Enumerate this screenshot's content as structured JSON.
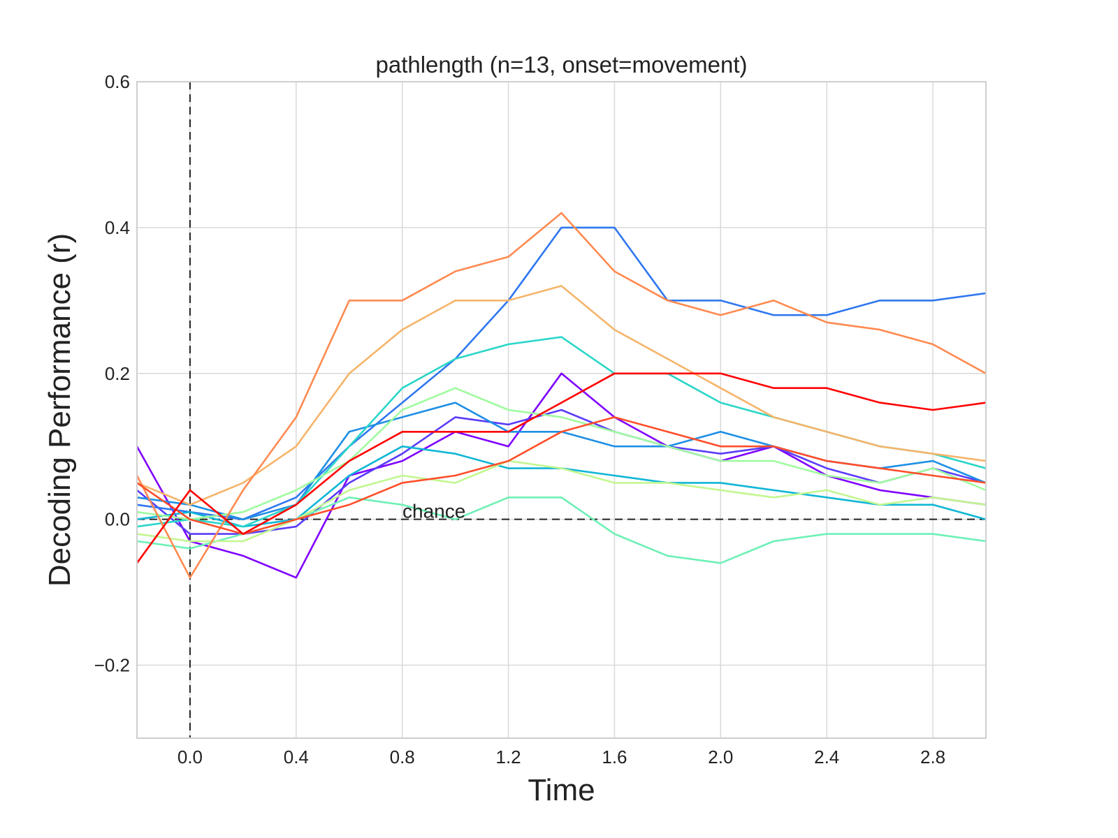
{
  "chart_data": {
    "type": "line",
    "title": "pathlength (n=13, onset=movement)",
    "xlabel": "Time",
    "ylabel": "Decoding Performance (r)",
    "xlim": [
      -0.2,
      3.0
    ],
    "ylim": [
      -0.3,
      0.6
    ],
    "xticks": [
      0.0,
      0.4,
      0.8,
      1.2,
      1.6,
      2.0,
      2.4,
      2.8
    ],
    "xtick_labels": [
      "0.0",
      "0.4",
      "0.8",
      "1.2",
      "1.6",
      "2.0",
      "2.4",
      "2.8"
    ],
    "yticks": [
      -0.2,
      0.0,
      0.2,
      0.4,
      0.6
    ],
    "ytick_labels": [
      "−0.2",
      "0.0",
      "0.2",
      "0.4",
      "0.6"
    ],
    "grid": true,
    "onset_line_x": 0.0,
    "chance_level": 0.0,
    "annotation": "chance",
    "series_colors": [
      "#7f00ff",
      "#5a3cfa",
      "#2f77ef",
      "#1e8fe5",
      "#10b6d6",
      "#2ad6c8",
      "#6ef0b6",
      "#9ffb9f",
      "#c2f790",
      "#f6b46a",
      "#ff8a50",
      "#ff4e2a",
      "#ff0000"
    ],
    "series": [
      {
        "x": [
          -0.2,
          0.0,
          0.2,
          0.4,
          0.6,
          0.8,
          1.0,
          1.2,
          1.4,
          1.6,
          1.8,
          2.0,
          2.2,
          2.4,
          2.6,
          2.8,
          3.0
        ],
        "values": [
          0.1,
          -0.03,
          -0.05,
          -0.08,
          0.06,
          0.08,
          0.12,
          0.1,
          0.2,
          0.14,
          0.1,
          0.08,
          0.1,
          0.06,
          0.04,
          0.03,
          0.02
        ]
      },
      {
        "x": [
          -0.2,
          0.0,
          0.2,
          0.4,
          0.6,
          0.8,
          1.0,
          1.2,
          1.4,
          1.6,
          1.8,
          2.0,
          2.2,
          2.4,
          2.6,
          2.8,
          3.0
        ],
        "values": [
          0.04,
          -0.02,
          -0.02,
          -0.01,
          0.05,
          0.09,
          0.14,
          0.13,
          0.15,
          0.12,
          0.1,
          0.09,
          0.1,
          0.07,
          0.05,
          0.07,
          0.05
        ]
      },
      {
        "x": [
          -0.2,
          0.0,
          0.2,
          0.4,
          0.6,
          0.8,
          1.0,
          1.2,
          1.4,
          1.6,
          1.8,
          2.0,
          2.2,
          2.4,
          2.6,
          2.8,
          3.0
        ],
        "values": [
          0.02,
          0.01,
          0.0,
          0.03,
          0.1,
          0.16,
          0.22,
          0.3,
          0.4,
          0.4,
          0.3,
          0.3,
          0.28,
          0.28,
          0.3,
          0.3,
          0.31
        ]
      },
      {
        "x": [
          -0.2,
          0.0,
          0.2,
          0.4,
          0.6,
          0.8,
          1.0,
          1.2,
          1.4,
          1.6,
          1.8,
          2.0,
          2.2,
          2.4,
          2.6,
          2.8,
          3.0
        ],
        "values": [
          0.03,
          0.02,
          0.0,
          0.02,
          0.12,
          0.14,
          0.16,
          0.12,
          0.12,
          0.1,
          0.1,
          0.12,
          0.1,
          0.08,
          0.07,
          0.08,
          0.05
        ]
      },
      {
        "x": [
          -0.2,
          0.0,
          0.2,
          0.4,
          0.6,
          0.8,
          1.0,
          1.2,
          1.4,
          1.6,
          1.8,
          2.0,
          2.2,
          2.4,
          2.6,
          2.8,
          3.0
        ],
        "values": [
          0.0,
          0.01,
          -0.01,
          0.0,
          0.06,
          0.1,
          0.09,
          0.07,
          0.07,
          0.06,
          0.05,
          0.05,
          0.04,
          0.03,
          0.02,
          0.02,
          0.0
        ]
      },
      {
        "x": [
          -0.2,
          0.0,
          0.2,
          0.4,
          0.6,
          0.8,
          1.0,
          1.2,
          1.4,
          1.6,
          1.8,
          2.0,
          2.2,
          2.4,
          2.6,
          2.8,
          3.0
        ],
        "values": [
          -0.01,
          0.0,
          -0.01,
          0.02,
          0.1,
          0.18,
          0.22,
          0.24,
          0.25,
          0.2,
          0.2,
          0.16,
          0.14,
          0.12,
          0.1,
          0.09,
          0.07
        ]
      },
      {
        "x": [
          -0.2,
          0.0,
          0.2,
          0.4,
          0.6,
          0.8,
          1.0,
          1.2,
          1.4,
          1.6,
          1.8,
          2.0,
          2.2,
          2.4,
          2.6,
          2.8,
          3.0
        ],
        "values": [
          -0.03,
          -0.04,
          -0.02,
          0.0,
          0.03,
          0.02,
          0.0,
          0.03,
          0.03,
          -0.02,
          -0.05,
          -0.06,
          -0.03,
          -0.02,
          -0.02,
          -0.02,
          -0.03
        ]
      },
      {
        "x": [
          -0.2,
          0.0,
          0.2,
          0.4,
          0.6,
          0.8,
          1.0,
          1.2,
          1.4,
          1.6,
          1.8,
          2.0,
          2.2,
          2.4,
          2.6,
          2.8,
          3.0
        ],
        "values": [
          0.01,
          0.0,
          0.01,
          0.04,
          0.08,
          0.15,
          0.18,
          0.15,
          0.14,
          0.12,
          0.1,
          0.08,
          0.08,
          0.06,
          0.05,
          0.07,
          0.04
        ]
      },
      {
        "x": [
          -0.2,
          0.0,
          0.2,
          0.4,
          0.6,
          0.8,
          1.0,
          1.2,
          1.4,
          1.6,
          1.8,
          2.0,
          2.2,
          2.4,
          2.6,
          2.8,
          3.0
        ],
        "values": [
          -0.02,
          -0.03,
          -0.03,
          0.0,
          0.04,
          0.06,
          0.05,
          0.08,
          0.07,
          0.05,
          0.05,
          0.04,
          0.03,
          0.04,
          0.02,
          0.03,
          0.02
        ]
      },
      {
        "x": [
          -0.2,
          0.0,
          0.2,
          0.4,
          0.6,
          0.8,
          1.0,
          1.2,
          1.4,
          1.6,
          1.8,
          2.0,
          2.2,
          2.4,
          2.6,
          2.8,
          3.0
        ],
        "values": [
          0.05,
          0.02,
          0.05,
          0.1,
          0.2,
          0.26,
          0.3,
          0.3,
          0.32,
          0.26,
          0.22,
          0.18,
          0.14,
          0.12,
          0.1,
          0.09,
          0.08
        ]
      },
      {
        "x": [
          -0.2,
          0.0,
          0.2,
          0.4,
          0.6,
          0.8,
          1.0,
          1.2,
          1.4,
          1.6,
          1.8,
          2.0,
          2.2,
          2.4,
          2.6,
          2.8,
          3.0
        ],
        "values": [
          0.06,
          -0.08,
          0.04,
          0.14,
          0.3,
          0.3,
          0.34,
          0.36,
          0.42,
          0.34,
          0.3,
          0.28,
          0.3,
          0.27,
          0.26,
          0.24,
          0.2
        ]
      },
      {
        "x": [
          -0.2,
          0.0,
          0.2,
          0.4,
          0.6,
          0.8,
          1.0,
          1.2,
          1.4,
          1.6,
          1.8,
          2.0,
          2.2,
          2.4,
          2.6,
          2.8,
          3.0
        ],
        "values": [
          0.05,
          0.0,
          -0.02,
          0.0,
          0.02,
          0.05,
          0.06,
          0.08,
          0.12,
          0.14,
          0.12,
          0.1,
          0.1,
          0.08,
          0.07,
          0.06,
          0.05
        ]
      },
      {
        "x": [
          -0.2,
          0.0,
          0.2,
          0.4,
          0.6,
          0.8,
          1.0,
          1.2,
          1.4,
          1.6,
          1.8,
          2.0,
          2.2,
          2.4,
          2.6,
          2.8,
          3.0
        ],
        "values": [
          -0.06,
          0.04,
          -0.02,
          0.02,
          0.08,
          0.12,
          0.12,
          0.12,
          0.16,
          0.2,
          0.2,
          0.2,
          0.18,
          0.18,
          0.16,
          0.15,
          0.16
        ]
      }
    ]
  }
}
